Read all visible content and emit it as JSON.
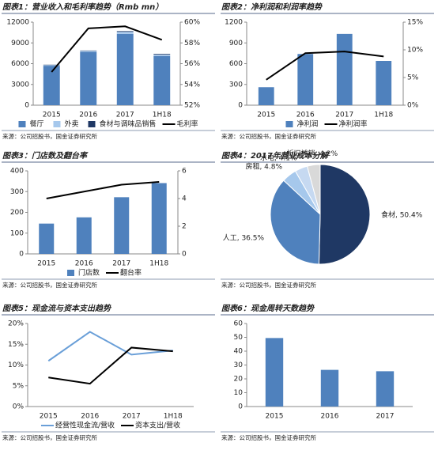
{
  "chart_data": [
    {
      "type": "bar",
      "title": "图表1：营业收入和毛利率趋势（Rmb mn）",
      "source": "来源：公司招股书，国金证券研究所",
      "stacked": true,
      "categories": [
        "2015",
        "2016",
        "2017",
        "1H18"
      ],
      "series": [
        {
          "name": "餐厅",
          "color": "#4f81bd",
          "values": [
            5700,
            7700,
            10300,
            7100
          ]
        },
        {
          "name": "外卖",
          "color": "#a6c8ec",
          "values": [
            100,
            150,
            300,
            200
          ]
        },
        {
          "name": "食材与调味品销售",
          "color": "#1f3864",
          "values": [
            50,
            50,
            100,
            100
          ]
        },
        {
          "name": "毛利率",
          "color": "#000000",
          "axis": "y2",
          "values": [
            55.2,
            59.4,
            59.6,
            58.3
          ]
        }
      ],
      "ylim": [
        0,
        12000
      ],
      "yticks": [
        0,
        3000,
        6000,
        9000,
        12000
      ],
      "y2lim": [
        52,
        60
      ],
      "y2ticks": [
        {
          "value": 52,
          "label": "52%"
        },
        {
          "value": 54,
          "label": "54%"
        },
        {
          "value": 56,
          "label": "56%"
        },
        {
          "value": 58,
          "label": "58%"
        },
        {
          "value": 60,
          "label": "60%"
        }
      ]
    },
    {
      "type": "bar",
      "title": "图表2：净利润和利润率趋势",
      "source": "来源：公司招股书，国金证券研究所",
      "categories": [
        "2015",
        "2016",
        "2017",
        "1H18"
      ],
      "series": [
        {
          "name": "净利润",
          "color": "#4f81bd",
          "values": [
            260,
            740,
            1030,
            640
          ]
        },
        {
          "name": "净利润率",
          "color": "#000000",
          "axis": "y2",
          "values": [
            4.6,
            9.4,
            9.7,
            8.8
          ]
        }
      ],
      "ylim": [
        0,
        1200
      ],
      "yticks": [
        0,
        300,
        600,
        900,
        1200
      ],
      "y2lim": [
        0,
        15
      ],
      "y2ticks": [
        {
          "value": 0,
          "label": "0%"
        },
        {
          "value": 5,
          "label": "5%"
        },
        {
          "value": 10,
          "label": "10%"
        },
        {
          "value": 15,
          "label": "15%"
        }
      ]
    },
    {
      "type": "bar",
      "title": "图表3：门店数及翻台率",
      "source": "来源：公司招股书，国金证券研究所",
      "categories": [
        "2015",
        "2016",
        "2017",
        "1H18"
      ],
      "series": [
        {
          "name": "门店数",
          "color": "#4f81bd",
          "values": [
            146,
            176,
            273,
            341
          ]
        },
        {
          "name": "翻台率",
          "color": "#000000",
          "axis": "y2",
          "values": [
            4.0,
            4.5,
            5.0,
            5.2
          ]
        }
      ],
      "ylim": [
        0,
        400
      ],
      "yticks": [
        0,
        100,
        200,
        300,
        400
      ],
      "y2lim": [
        0,
        6
      ],
      "y2ticks": [
        0,
        2,
        4,
        6
      ]
    },
    {
      "type": "pie",
      "title": "图表4：2017年营业成本分解",
      "source": "来源：公司招股书，国金证券研究所",
      "values": [
        50.4,
        36.5,
        4.8,
        4.1,
        4.2
      ],
      "value_labels": [
        "食材, 50.4%",
        "人工, 36.5%",
        "房租, 4.8%",
        "水电, 4.1%",
        "折旧摊销, 4.2%"
      ],
      "colors": [
        "#1f3864",
        "#4f81bd",
        "#a6c8ec",
        "#c6d9f1",
        "#d9d9d9"
      ]
    },
    {
      "type": "line",
      "title": "图表5：现金流与资本支出趋势",
      "source": "来源：公司招股书，国金证券研究所",
      "categories": [
        "2015",
        "2016",
        "2017",
        "1H18"
      ],
      "series": [
        {
          "name": "经营性现金流/营收",
          "color": "#6a9fd8",
          "values": [
            11,
            18,
            12.5,
            13.5
          ]
        },
        {
          "name": "资本支出/营收",
          "color": "#000000",
          "values": [
            7,
            5.5,
            14.2,
            13.3
          ]
        }
      ],
      "ylim": [
        0,
        20
      ],
      "yticks": [
        {
          "value": 0,
          "label": "0%"
        },
        {
          "value": 5,
          "label": "5%"
        },
        {
          "value": 10,
          "label": "10%"
        },
        {
          "value": 15,
          "label": "15%"
        },
        {
          "value": 20,
          "label": "20%"
        }
      ]
    },
    {
      "type": "bar",
      "title": "图表6：现金周转天数趋势",
      "source": "来源：公司招股书，国金证券研究所",
      "legend": false,
      "categories": [
        "2015",
        "2016",
        "2017"
      ],
      "series": [
        {
          "name": "现金周转天数",
          "color": "#4f81bd",
          "values": [
            49.5,
            26.5,
            25.5
          ]
        }
      ],
      "ylim": [
        0,
        60
      ],
      "yticks": [
        0,
        10,
        20,
        30,
        40,
        50,
        60
      ]
    }
  ]
}
